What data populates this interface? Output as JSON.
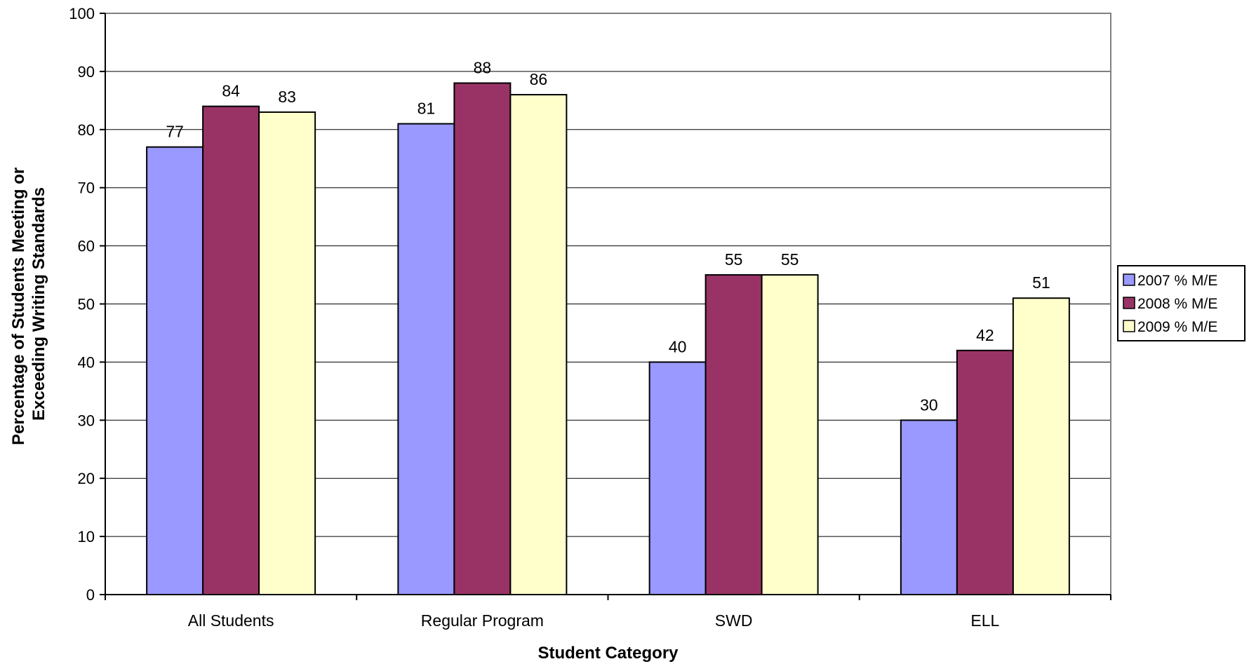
{
  "chart_data": {
    "type": "bar",
    "title": "",
    "xlabel": "Student Category",
    "ylabel_lines": [
      "Percentage of Students Meeting or",
      "Exceeding Writing Standards"
    ],
    "ylim": [
      0,
      100
    ],
    "yticks": [
      0,
      10,
      20,
      30,
      40,
      50,
      60,
      70,
      80,
      90,
      100
    ],
    "grid": true,
    "legend_position": "right",
    "categories": [
      "All Students",
      "Regular Program",
      "SWD",
      "ELL"
    ],
    "series": [
      {
        "name": "2007 % M/E",
        "color": "#9999ff",
        "values": [
          77,
          81,
          40,
          30
        ]
      },
      {
        "name": "2008 % M/E",
        "color": "#993366",
        "values": [
          84,
          88,
          55,
          42
        ]
      },
      {
        "name": "2009 % M/E",
        "color": "#ffffcc",
        "values": [
          83,
          86,
          55,
          51
        ]
      }
    ]
  }
}
